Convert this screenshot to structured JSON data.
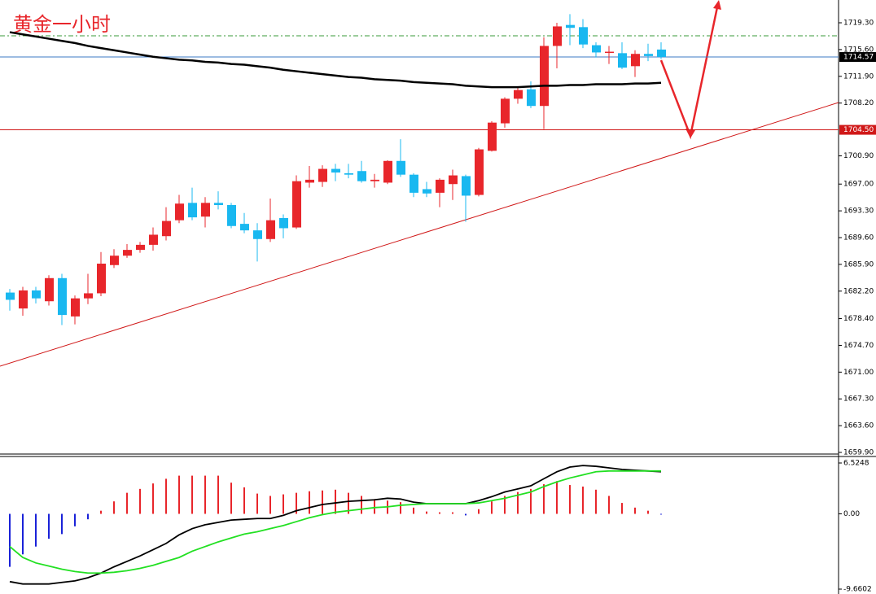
{
  "chart_data": [
    {
      "type": "candlestick",
      "title": "黄金一小时",
      "open": [
        1682.0,
        1679.8,
        1682.3,
        1680.8,
        1684.0,
        1678.7,
        1681.2,
        1681.9,
        1685.8,
        1687.1,
        1687.9,
        1688.6,
        1689.8,
        1692.0,
        1694.4,
        1692.5,
        1694.4,
        1694.1,
        1691.5,
        1690.6,
        1689.4,
        1692.3,
        1691.0,
        1697.2,
        1697.3,
        1699.1,
        1698.5,
        1698.8,
        1697.4,
        1697.2,
        1700.2,
        1698.3,
        1696.3,
        1695.8,
        1697.0,
        1698.1,
        1695.5,
        1701.6,
        1705.4,
        1708.8,
        1710.1,
        1707.8,
        1716.1,
        1719.0,
        1718.7,
        1716.2,
        1715.2,
        1715.1,
        1713.3,
        1715.0,
        1715.6
      ],
      "high": [
        1682.5,
        1682.8,
        1682.8,
        1684.4,
        1684.6,
        1681.6,
        1684.6,
        1687.6,
        1688.0,
        1688.7,
        1689.0,
        1691.0,
        1693.8,
        1695.5,
        1696.5,
        1695.2,
        1696.0,
        1694.4,
        1693.0,
        1691.6,
        1695.0,
        1692.8,
        1698.2,
        1699.5,
        1699.6,
        1699.8,
        1699.8,
        1700.2,
        1698.4,
        1700.3,
        1703.2,
        1698.5,
        1697.3,
        1697.8,
        1699.0,
        1698.3,
        1702.0,
        1705.7,
        1709.0,
        1710.4,
        1711.2,
        1717.3,
        1719.3,
        1720.5,
        1719.8,
        1716.6,
        1716.1,
        1716.6,
        1715.5,
        1716.4,
        1716.6
      ],
      "low": [
        1679.5,
        1678.8,
        1680.5,
        1680.2,
        1677.5,
        1677.6,
        1680.4,
        1681.5,
        1685.4,
        1686.8,
        1687.5,
        1687.8,
        1689.2,
        1691.6,
        1692.0,
        1691.0,
        1693.5,
        1690.9,
        1690.2,
        1686.3,
        1689.0,
        1689.5,
        1690.8,
        1696.5,
        1696.6,
        1697.4,
        1697.8,
        1697.2,
        1696.5,
        1697.0,
        1698.0,
        1695.2,
        1695.2,
        1693.8,
        1694.8,
        1691.8,
        1695.3,
        1701.5,
        1704.8,
        1708.1,
        1707.5,
        1704.6,
        1713.0,
        1716.2,
        1715.8,
        1714.5,
        1713.6,
        1712.9,
        1711.8,
        1714.0,
        1714.3
      ],
      "close": [
        1681.0,
        1682.3,
        1681.2,
        1684.0,
        1678.9,
        1681.2,
        1681.9,
        1686.0,
        1687.1,
        1687.9,
        1688.6,
        1690.0,
        1691.9,
        1694.3,
        1692.4,
        1694.4,
        1694.1,
        1691.2,
        1690.6,
        1689.4,
        1692.0,
        1690.9,
        1697.4,
        1697.6,
        1699.1,
        1698.6,
        1698.3,
        1697.4,
        1697.6,
        1700.2,
        1698.3,
        1695.8,
        1695.7,
        1697.6,
        1698.2,
        1695.4,
        1701.8,
        1705.5,
        1708.8,
        1710.0,
        1707.8,
        1716.1,
        1718.8,
        1718.6,
        1716.3,
        1715.2,
        1715.3,
        1713.1,
        1715.0,
        1714.7,
        1714.57
      ],
      "ma": [
        1718.0,
        1717.7,
        1717.4,
        1717.1,
        1716.8,
        1716.5,
        1716.1,
        1715.8,
        1715.5,
        1715.2,
        1714.9,
        1714.6,
        1714.4,
        1714.2,
        1714.1,
        1713.9,
        1713.8,
        1713.6,
        1713.5,
        1713.3,
        1713.1,
        1712.8,
        1712.6,
        1712.4,
        1712.2,
        1712.0,
        1711.8,
        1711.7,
        1711.5,
        1711.4,
        1711.3,
        1711.1,
        1711.0,
        1710.9,
        1710.8,
        1710.6,
        1710.5,
        1710.4,
        1710.4,
        1710.4,
        1710.5,
        1710.6,
        1710.6,
        1710.7,
        1710.7,
        1710.8,
        1710.8,
        1710.8,
        1710.9,
        1710.9,
        1711.0
      ],
      "up_color": "#e8262b",
      "down_color": "#19b8f0",
      "ma_color": "#000000",
      "ylim": [
        1659.9,
        1722.45
      ],
      "yticks": [
        {
          "value": 1719.3,
          "label": "1719.30"
        },
        {
          "value": 1715.6,
          "label": "1715.60"
        },
        {
          "value": 1711.9,
          "label": "1711.90"
        },
        {
          "value": 1708.2,
          "label": "1708.20"
        },
        {
          "value": 1700.9,
          "label": "1700.90"
        },
        {
          "value": 1697,
          "label": "1697.00"
        },
        {
          "value": 1693.3,
          "label": "1693.30"
        },
        {
          "value": 1689.6,
          "label": "1689.60"
        },
        {
          "value": 1685.9,
          "label": "1685.90"
        },
        {
          "value": 1682.2,
          "label": "1682.20"
        },
        {
          "value": 1678.4,
          "label": "1678.40"
        },
        {
          "value": 1674.7,
          "label": "1674.70"
        },
        {
          "value": 1671,
          "label": "1671.00"
        },
        {
          "value": 1667.3,
          "label": "1667.30"
        },
        {
          "value": 1663.6,
          "label": "1663.60"
        },
        {
          "value": 1659.9,
          "label": "1659.90"
        }
      ],
      "current_price": 1714.57,
      "current_color": "#3b78c4",
      "level": {
        "value": 1704.5,
        "label": "1704.50"
      },
      "level_color": "#d01818"
    },
    {
      "type": "macd",
      "values": [
        -6.8,
        -5.2,
        -4.2,
        -3.2,
        -2.6,
        -1.6,
        -0.7,
        0.4,
        1.6,
        2.7,
        3.2,
        3.9,
        4.5,
        4.9,
        4.9,
        4.9,
        4.9,
        4.0,
        3.4,
        2.6,
        2.3,
        2.5,
        2.7,
        2.9,
        3.0,
        3.1,
        2.7,
        2.3,
        1.9,
        1.7,
        1.5,
        0.8,
        0.3,
        0.2,
        0.2,
        -0.2,
        0.6,
        1.6,
        2.3,
        2.8,
        3.2,
        3.8,
        4.2,
        3.7,
        3.5,
        3.1,
        2.3,
        1.4,
        0.8,
        0.4,
        -0.1
      ],
      "series": [
        {
          "color": "#000000",
          "values": [
            -8.7,
            -9.0,
            -9.0,
            -9.0,
            -8.8,
            -8.6,
            -8.2,
            -7.6,
            -6.8,
            -6.1,
            -5.4,
            -4.6,
            -3.8,
            -2.7,
            -1.9,
            -1.4,
            -1.1,
            -0.8,
            -0.7,
            -0.6,
            -0.6,
            -0.2,
            0.4,
            0.8,
            1.2,
            1.4,
            1.6,
            1.7,
            1.8,
            2.0,
            1.9,
            1.5,
            1.3,
            1.3,
            1.3,
            1.3,
            1.7,
            2.2,
            2.8,
            3.2,
            3.6,
            4.5,
            5.4,
            6.0,
            6.2,
            6.1,
            5.9,
            5.7,
            5.6,
            5.5,
            5.4
          ]
        },
        {
          "color": "#22e022",
          "values": [
            -4.2,
            -5.6,
            -6.3,
            -6.7,
            -7.1,
            -7.4,
            -7.6,
            -7.6,
            -7.5,
            -7.3,
            -7.0,
            -6.6,
            -6.1,
            -5.6,
            -4.8,
            -4.2,
            -3.6,
            -3.1,
            -2.6,
            -2.3,
            -1.9,
            -1.5,
            -1.0,
            -0.5,
            -0.1,
            0.2,
            0.4,
            0.6,
            0.8,
            0.9,
            1.1,
            1.2,
            1.3,
            1.3,
            1.3,
            1.3,
            1.4,
            1.7,
            2.0,
            2.4,
            2.8,
            3.5,
            4.1,
            4.6,
            5.0,
            5.4,
            5.5,
            5.5,
            5.5,
            5.5,
            5.5
          ]
        }
      ],
      "pos_color": "#e8262b",
      "neg_color": "#1a22d8",
      "ylim": [
        -9.6602,
        6.5248
      ],
      "yticks": [
        6.5248,
        {
          "value": 0,
          "label": "0.00"
        },
        -9.6602
      ]
    }
  ]
}
